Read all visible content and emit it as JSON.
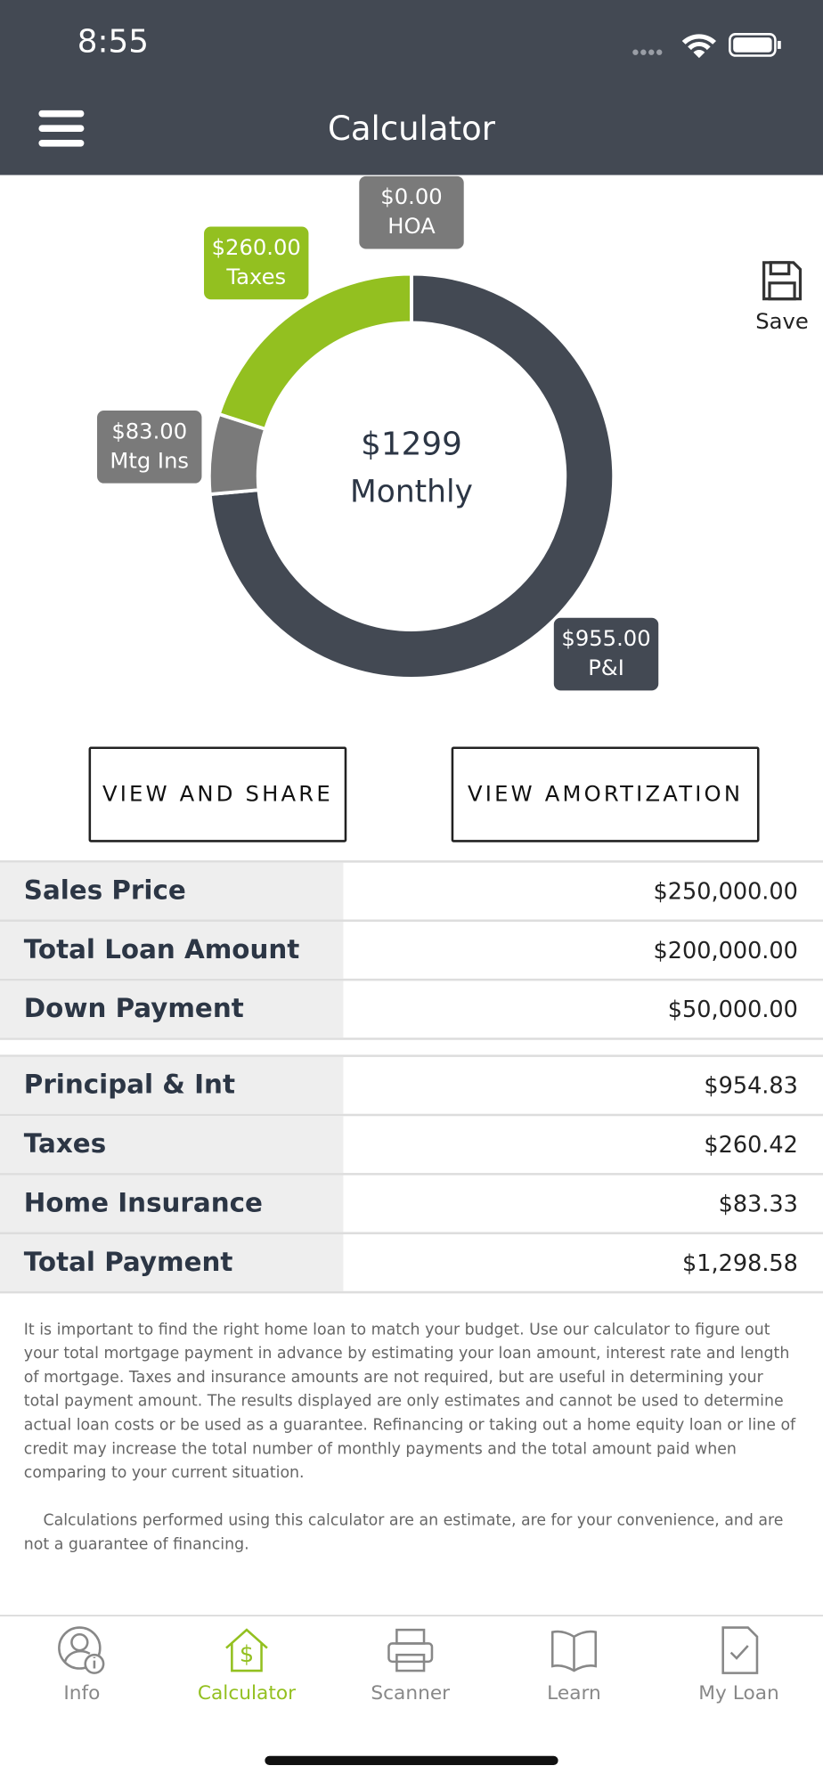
{
  "status_bar": {
    "time": "8:55"
  },
  "header": {
    "title": "Calculator"
  },
  "save": "Save",
  "chart_data": {
    "type": "donut",
    "center_value": "$1299",
    "center_label": "Monthly",
    "categories": [
      "P&I",
      "Mtg Ins",
      "Taxes",
      "HOA"
    ],
    "values": [
      955,
      83,
      260,
      0
    ],
    "value_labels": [
      "$955.00",
      "$83.00",
      "$260.00",
      "$0.00"
    ],
    "colors": [
      "#434953",
      "#7a7a7a",
      "#93c020",
      "#7a7a7a"
    ]
  },
  "buttons": [
    "VIEW AND SHARE",
    "VIEW AMORTIZATION"
  ],
  "loan_table": {
    "rows": [
      [
        "Sales Price",
        "$250,000.00"
      ],
      [
        "Total Loan Amount",
        "$200,000.00"
      ],
      [
        "Down Payment",
        "$50,000.00"
      ]
    ]
  },
  "payment_table": {
    "rows": [
      [
        "Principal & Int",
        "$954.83"
      ],
      [
        "Taxes",
        "$260.42"
      ],
      [
        "Home Insurance",
        "$83.33"
      ],
      [
        "Total Payment",
        "$1,298.58"
      ]
    ]
  },
  "disclaimer": [
    "It is important to find the right home loan to match your budget. Use our calculator to figure out your total mortgage payment in advance by estimating your loan amount, interest rate and length of mortgage. Taxes and insurance amounts are not required, but are useful in determining your total payment amount. The results displayed are only estimates and cannot be used to determine actual loan costs or be used as a guarantee. Refinancing or taking out a home equity loan or line of credit may increase the total number of monthly payments and the total amount paid when comparing to your current situation.",
    "Calculations performed using this calculator are an estimate, are for your convenience, and are not a guarantee of financing."
  ],
  "tabs": [
    "Info",
    "Calculator",
    "Scanner",
    "Learn",
    "My Loan"
  ]
}
